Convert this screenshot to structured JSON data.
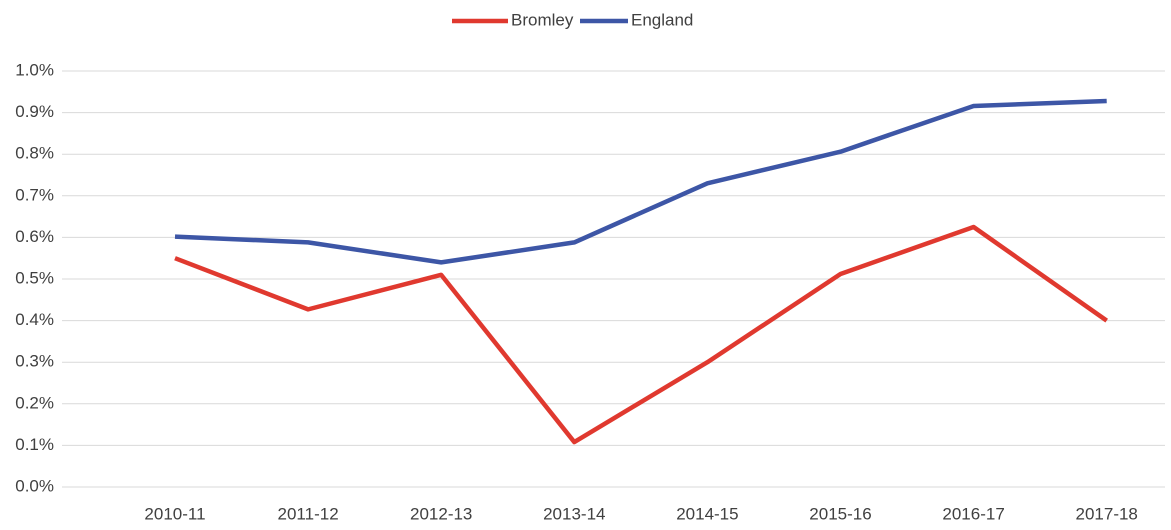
{
  "chart_data": {
    "type": "line",
    "categories": [
      "2010-11",
      "2011-12",
      "2012-13",
      "2013-14",
      "2014-15",
      "2015-16",
      "2016-17",
      "2017-18"
    ],
    "series": [
      {
        "name": "Bromley",
        "color": "#e0392f",
        "values": [
          0.55,
          0.427,
          0.51,
          0.108,
          0.3,
          0.512,
          0.625,
          0.4
        ]
      },
      {
        "name": "England",
        "color": "#3d56a6",
        "values": [
          0.602,
          0.588,
          0.54,
          0.588,
          0.73,
          0.806,
          0.916,
          0.928
        ]
      }
    ],
    "ylim": [
      0,
      1
    ],
    "yticks": [
      {
        "value": 0,
        "label": "0.0%"
      },
      {
        "value": 0.1,
        "label": "0.1%"
      },
      {
        "value": 0.2,
        "label": "0.2%"
      },
      {
        "value": 0.3,
        "label": "0.3%"
      },
      {
        "value": 0.4,
        "label": "0.4%"
      },
      {
        "value": 0.5,
        "label": "0.5%"
      },
      {
        "value": 0.6,
        "label": "0.6%"
      },
      {
        "value": 0.7,
        "label": "0.7%"
      },
      {
        "value": 0.8,
        "label": "0.8%"
      },
      {
        "value": 0.9,
        "label": "0.9%"
      },
      {
        "value": 1,
        "label": "1.0%"
      }
    ],
    "grid": true,
    "legend": "top"
  }
}
